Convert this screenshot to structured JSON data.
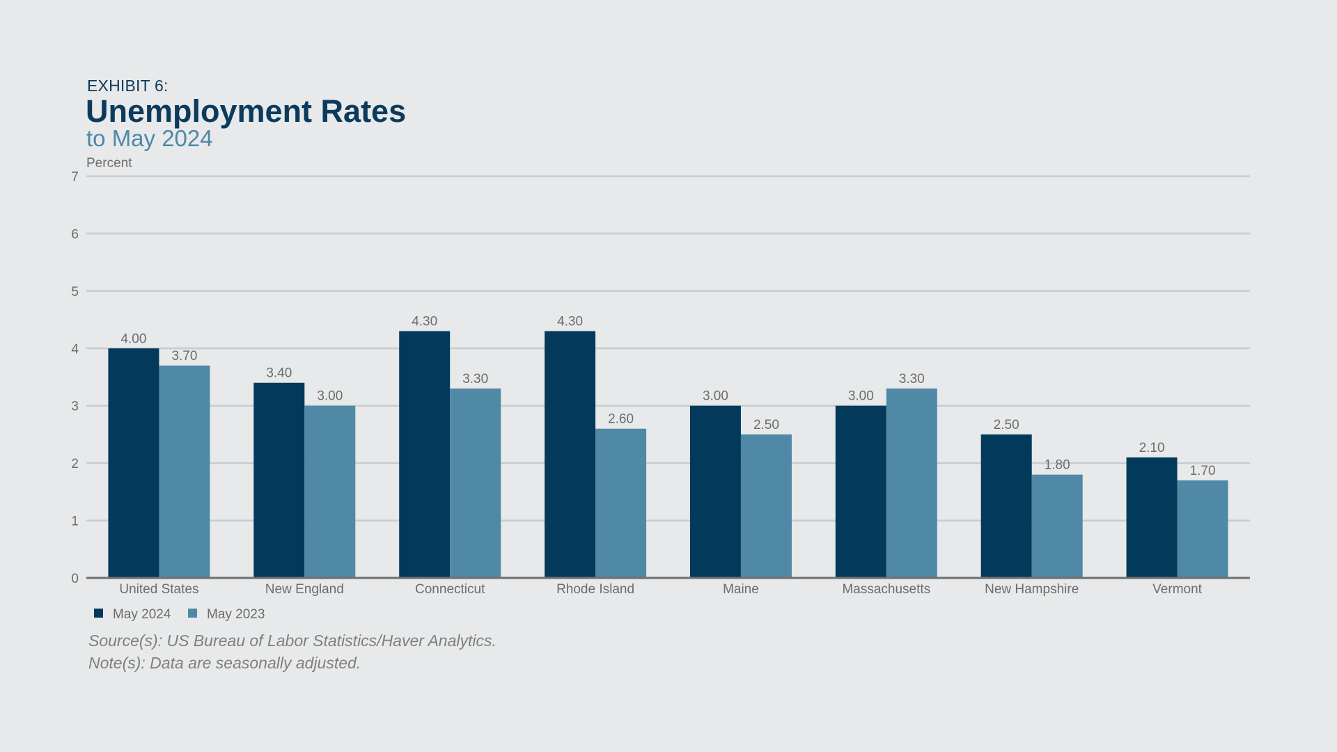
{
  "header": {
    "exhibit": "EXHIBIT 6:",
    "title": "Unemployment Rates",
    "subtitle": "to May 2024",
    "y_unit": "Percent"
  },
  "footnotes": {
    "source": "Source(s): US Bureau of Labor Statistics/Haver Analytics.",
    "note": "Note(s): Data are seasonally adjusted."
  },
  "colors": {
    "series_2024": "#03395b",
    "series_2023": "#4f89a6",
    "grid": "#c9cccf",
    "axis": "#6f6f6f",
    "label": "#6c6c6c"
  },
  "chart_data": {
    "type": "bar",
    "title": "Unemployment Rates",
    "subtitle": "to May 2024",
    "ylabel": "Percent",
    "ylim": [
      0,
      7
    ],
    "yticks": [
      "0",
      "1",
      "2",
      "3",
      "4",
      "5",
      "6",
      "7"
    ],
    "grid": true,
    "legend_position": "bottom-left",
    "categories": [
      "United States",
      "New England",
      "Connecticut",
      "Rhode Island",
      "Maine",
      "Massachusetts",
      "New Hampshire",
      "Vermont"
    ],
    "series": [
      {
        "name": "May 2024",
        "values": [
          4.0,
          3.4,
          4.3,
          4.3,
          3.0,
          3.0,
          2.5,
          2.1
        ],
        "labels": [
          "4.00",
          "3.40",
          "4.30",
          "4.30",
          "3.00",
          "3.00",
          "2.50",
          "2.10"
        ]
      },
      {
        "name": "May 2023",
        "values": [
          3.7,
          3.0,
          3.3,
          2.6,
          2.5,
          3.3,
          1.8,
          1.7
        ],
        "labels": [
          "3.70",
          "3.00",
          "3.30",
          "2.60",
          "2.50",
          "3.30",
          "1.80",
          "1.70"
        ]
      }
    ]
  }
}
